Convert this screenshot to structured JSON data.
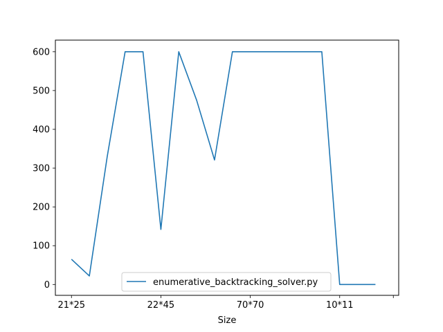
{
  "chart_data": {
    "type": "line",
    "title": "",
    "xlabel": "Size",
    "ylabel": "",
    "x_tick_labels": [
      {
        "index": 0,
        "label": "21*25"
      },
      {
        "index": 5,
        "label": "22*45"
      },
      {
        "index": 10,
        "label": "70*70"
      },
      {
        "index": 15,
        "label": "10*11"
      },
      {
        "index": 18,
        "label": ""
      }
    ],
    "y_ticks": [
      0,
      100,
      200,
      300,
      400,
      500,
      600
    ],
    "ylim": [
      -28,
      630
    ],
    "xlim": [
      -0.9,
      18.3
    ],
    "grid": false,
    "legend_position": "lower center",
    "series": [
      {
        "name": "enumerative_backtracking_solver.py",
        "color": "#1f77b4",
        "values": [
          65,
          22,
          330,
          600,
          600,
          142,
          600,
          475,
          321,
          600,
          600,
          600,
          600,
          600,
          600,
          0,
          0,
          0
        ]
      }
    ]
  }
}
